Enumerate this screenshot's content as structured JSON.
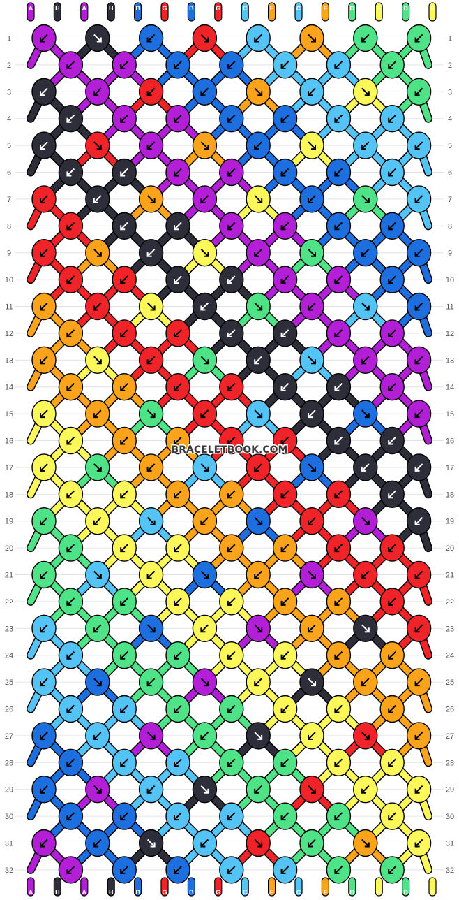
{
  "watermark": "BRACELETBOOK.COM",
  "strand_letters": [
    "A",
    "H",
    "A",
    "H",
    "B",
    "G",
    "B",
    "G",
    "C",
    "F",
    "C",
    "F",
    "D",
    "E",
    "D",
    "E"
  ],
  "colors": {
    "A": "#b31fd6",
    "H": "#2e2e3a",
    "B": "#1d6fe0",
    "G": "#f02428",
    "C": "#54c3f5",
    "F": "#fba31b",
    "D": "#4fe388",
    "E": "#fdf85a"
  },
  "row_labels": [
    "1",
    "2",
    "3",
    "4",
    "5",
    "6",
    "7",
    "8",
    "9",
    "10",
    "11",
    "12",
    "13",
    "14",
    "15",
    "16",
    "17",
    "18",
    "19",
    "20",
    "21",
    "22",
    "23",
    "24",
    "25",
    "26",
    "27",
    "28",
    "29",
    "30",
    "31",
    "32"
  ],
  "chart_data": {
    "type": "friendship-bracelet-pattern",
    "strands": 16,
    "rows": 32,
    "knots": [
      [
        "A:dr",
        "H:dl",
        "B:dr",
        "G:dl",
        "C:dr",
        "F:dl",
        "D:dr",
        "D:dr"
      ],
      [
        "A:dr",
        "A:dr",
        "B:dr",
        "B:dr",
        "C:dr",
        "C:dr",
        "D:dr"
      ],
      [
        "H:dr",
        "A:dr",
        "G:dr",
        "B:dr",
        "F:dl",
        "C:dr",
        "E:dl",
        "D:dr"
      ],
      [
        "H:dr",
        "A:dr",
        "A:dr",
        "B:dr",
        "B:dr",
        "C:dr",
        "C:dr"
      ],
      [
        "H:dr",
        "G:dl",
        "A:dr",
        "F:dl",
        "B:dr",
        "E:dl",
        "C:dr",
        "C:dr"
      ],
      [
        "H:dr",
        "H:dr",
        "A:dr",
        "A:dr",
        "B:dr",
        "B:dr",
        "C:dr"
      ],
      [
        "G:dr",
        "H:dr",
        "F:dl",
        "A:dr",
        "E:dl",
        "B:dr",
        "D:dl",
        "C:dr"
      ],
      [
        "G:dr",
        "H:dr",
        "H:dr",
        "A:dr",
        "A:dr",
        "B:dr",
        "B:dr"
      ],
      [
        "G:dr",
        "F:dl",
        "H:dr",
        "E:dl",
        "A:dr",
        "D:dl",
        "B:dr",
        "B:dr"
      ],
      [
        "G:dr",
        "G:dr",
        "H:dr",
        "H:dr",
        "A:dr",
        "A:dr",
        "B:dr"
      ],
      [
        "F:dr",
        "G:dr",
        "E:dl",
        "H:dr",
        "D:dl",
        "A:dr",
        "C:dl",
        "B:dr"
      ],
      [
        "F:dr",
        "G:dr",
        "G:dr",
        "H:dr",
        "H:dr",
        "A:dr",
        "A:dr"
      ],
      [
        "F:dr",
        "E:dl",
        "G:dr",
        "D:dl",
        "H:dr",
        "C:dl",
        "A:dr",
        "A:dr"
      ],
      [
        "F:dr",
        "F:dr",
        "G:dr",
        "G:dr",
        "H:dr",
        "H:dr",
        "A:dr"
      ],
      [
        "E:dr",
        "F:dr",
        "D:dl",
        "G:dr",
        "C:dl",
        "H:dr",
        "B:dl",
        "A:dr"
      ],
      [
        "E:dr",
        "F:dr",
        "F:dr",
        "G:dr",
        "G:dr",
        "H:dr",
        "H:dr"
      ],
      [
        "E:dr",
        "D:dl",
        "F:dr",
        "C:dl",
        "G:dr",
        "B:dl",
        "H:dr",
        "H:dr"
      ],
      [
        "E:dr",
        "E:dr",
        "F:dr",
        "F:dr",
        "G:dr",
        "G:dr",
        "H:dr"
      ],
      [
        "D:dr",
        "E:dr",
        "C:dl",
        "F:dr",
        "B:dl",
        "G:dr",
        "A:dl",
        "H:dr"
      ],
      [
        "D:dr",
        "E:dr",
        "E:dr",
        "F:dr",
        "F:dr",
        "G:dr",
        "G:dr"
      ],
      [
        "D:dr",
        "C:dl",
        "E:dr",
        "B:dl",
        "F:dr",
        "A:dl",
        "G:dr",
        "G:dr"
      ],
      [
        "D:dr",
        "D:dr",
        "E:dr",
        "E:dr",
        "F:dr",
        "F:dr",
        "G:dr"
      ],
      [
        "C:dr",
        "D:dr",
        "B:dl",
        "E:dr",
        "A:dl",
        "F:dr",
        "H:dl",
        "G:dr"
      ],
      [
        "C:dr",
        "D:dr",
        "D:dr",
        "E:dr",
        "E:dr",
        "F:dr",
        "F:dr"
      ],
      [
        "C:dr",
        "B:dl",
        "D:dr",
        "A:dl",
        "E:dr",
        "H:dl",
        "F:dr",
        "F:dr"
      ],
      [
        "C:dr",
        "C:dr",
        "D:dr",
        "D:dr",
        "E:dr",
        "E:dr",
        "F:dr"
      ],
      [
        "B:dr",
        "C:dr",
        "A:dl",
        "D:dr",
        "H:dl",
        "E:dr",
        "G:dl",
        "F:dr"
      ],
      [
        "B:dr",
        "C:dr",
        "C:dr",
        "D:dr",
        "D:dr",
        "E:dr",
        "E:dr"
      ],
      [
        "B:dr",
        "A:dl",
        "C:dr",
        "H:dl",
        "D:dr",
        "G:dl",
        "E:dr",
        "E:dr"
      ],
      [
        "B:dr",
        "B:dr",
        "C:dr",
        "C:dr",
        "D:dr",
        "D:dr",
        "E:dr"
      ],
      [
        "A:dr",
        "B:dr",
        "H:dl",
        "C:dr",
        "G:dl",
        "D:dr",
        "F:dl",
        "E:dr"
      ],
      [
        "A:dr",
        "B:dr",
        "B:dr",
        "C:dr",
        "C:dr",
        "D:dr",
        "D:dr"
      ]
    ]
  }
}
